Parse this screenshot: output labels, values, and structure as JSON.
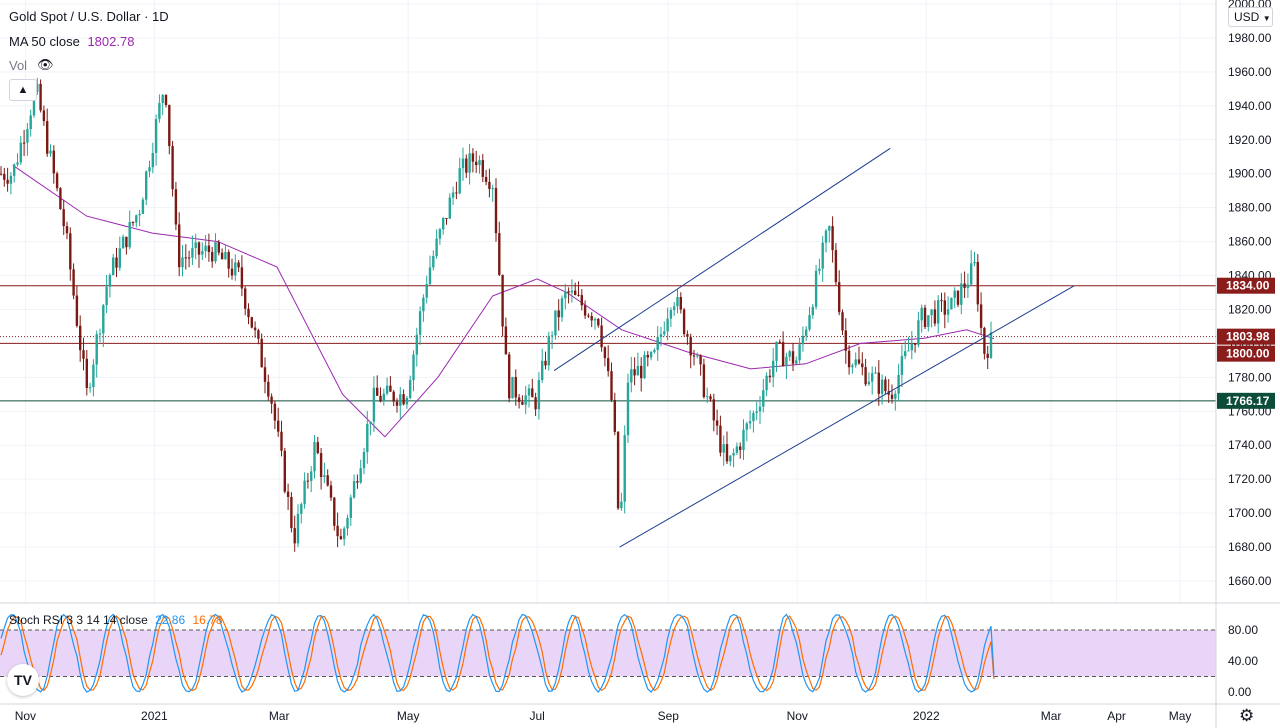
{
  "header": {
    "symbol_title": "Gold Spot / U.S. Dollar · 1D",
    "ma_label": "MA 50 close",
    "ma_value": "1802.78",
    "vol_label": "Vol",
    "collapse_icon": "chevron-up-icon",
    "visibility_icon": "eye-crossed-icon"
  },
  "currency": "USD",
  "stoch": {
    "label": "Stoch RSI 3 3 14 14 close",
    "k_value": "22.86",
    "d_value": "16.78",
    "axis": [
      80.0,
      40.0,
      0.0
    ],
    "levels": [
      80,
      20
    ]
  },
  "price_labels": {
    "resistance": "1834.00",
    "last": "1803.98",
    "level_1800": "1800.00",
    "support": "1766.17"
  },
  "colors": {
    "up": "#26a69a",
    "down": "#7b1a14",
    "ma": "#9c27b0",
    "trend": "#1a3d8f",
    "resistance": "#8b1c1c",
    "support": "#0b4d3a",
    "stoch_k": "#2196f3",
    "stoch_d": "#ff6d00",
    "stoch_band": "#e9d5f7"
  },
  "chart_data": {
    "type": "candlestick",
    "title": "Gold Spot / U.S. Dollar · 1D",
    "y_ticks": [
      2000,
      1980,
      1960,
      1940,
      1920,
      1900,
      1880,
      1860,
      1840,
      1820,
      1800,
      1780,
      1760,
      1740,
      1720,
      1700,
      1680,
      1660
    ],
    "x_ticks": [
      "Nov",
      "2021",
      "Mar",
      "May",
      "Jul",
      "Sep",
      "Nov",
      "2022",
      "Mar",
      "Apr",
      "May"
    ],
    "ylim": [
      1650,
      2003
    ],
    "horizontal_levels": [
      1834.0,
      1800.0,
      1766.17
    ],
    "last_price": 1803.98,
    "price_path": [
      [
        "2020-10-26",
        1900
      ],
      [
        "2020-11-06",
        1950
      ],
      [
        "2020-11-20",
        1865
      ],
      [
        "2020-11-30",
        1770
      ],
      [
        "2020-12-10",
        1838
      ],
      [
        "2020-12-25",
        1880
      ],
      [
        "2021-01-06",
        1955
      ],
      [
        "2021-01-12",
        1850
      ],
      [
        "2021-01-28",
        1855
      ],
      [
        "2021-02-10",
        1840
      ],
      [
        "2021-02-25",
        1770
      ],
      [
        "2021-03-08",
        1685
      ],
      [
        "2021-03-18",
        1740
      ],
      [
        "2021-03-30",
        1682
      ],
      [
        "2021-04-15",
        1768
      ],
      [
        "2021-04-30",
        1770
      ],
      [
        "2021-05-10",
        1840
      ],
      [
        "2021-05-25",
        1900
      ],
      [
        "2021-06-02",
        1910
      ],
      [
        "2021-06-10",
        1895
      ],
      [
        "2021-06-17",
        1775
      ],
      [
        "2021-06-30",
        1765
      ],
      [
        "2021-07-08",
        1808
      ],
      [
        "2021-07-15",
        1830
      ],
      [
        "2021-07-30",
        1815
      ],
      [
        "2021-08-06",
        1760
      ],
      [
        "2021-08-09",
        1685
      ],
      [
        "2021-08-13",
        1780
      ],
      [
        "2021-08-25",
        1790
      ],
      [
        "2021-09-03",
        1830
      ],
      [
        "2021-09-13",
        1795
      ],
      [
        "2021-09-29",
        1727
      ],
      [
        "2021-10-12",
        1760
      ],
      [
        "2021-10-22",
        1795
      ],
      [
        "2021-11-01",
        1790
      ],
      [
        "2021-11-16",
        1868
      ],
      [
        "2021-11-24",
        1795
      ],
      [
        "2021-12-01",
        1785
      ],
      [
        "2021-12-15",
        1770
      ],
      [
        "2021-12-30",
        1815
      ],
      [
        "2022-01-13",
        1822
      ],
      [
        "2022-01-24",
        1845
      ],
      [
        "2022-01-28",
        1795
      ],
      [
        "2022-02-02",
        1803
      ]
    ],
    "ma50_path": [
      [
        "2020-10-26",
        1905
      ],
      [
        "2020-11-30",
        1875
      ],
      [
        "2020-12-31",
        1865
      ],
      [
        "2021-01-31",
        1860
      ],
      [
        "2021-02-28",
        1845
      ],
      [
        "2021-03-31",
        1770
      ],
      [
        "2021-04-20",
        1745
      ],
      [
        "2021-05-15",
        1780
      ],
      [
        "2021-06-10",
        1828
      ],
      [
        "2021-07-01",
        1838
      ],
      [
        "2021-07-15",
        1830
      ],
      [
        "2021-08-10",
        1808
      ],
      [
        "2021-09-10",
        1795
      ],
      [
        "2021-10-10",
        1785
      ],
      [
        "2021-11-05",
        1788
      ],
      [
        "2021-12-01",
        1800
      ],
      [
        "2021-12-31",
        1803
      ],
      [
        "2022-01-20",
        1808
      ],
      [
        "2022-02-02",
        1802.78
      ]
    ],
    "channel_upper": [
      [
        "2021-07-09",
        1784
      ],
      [
        "2021-12-15",
        1915
      ]
    ],
    "channel_lower": [
      [
        "2021-08-09",
        1680
      ],
      [
        "2022-03-12",
        1834
      ]
    ],
    "stoch_rsi": {
      "k_last": 22.86,
      "d_last": 16.78,
      "ylim": [
        0,
        100
      ]
    }
  }
}
